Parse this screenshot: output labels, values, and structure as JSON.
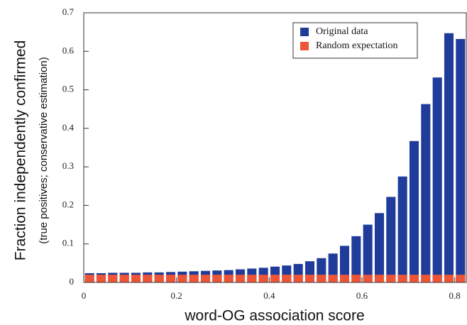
{
  "chart_data": {
    "type": "histogram",
    "xlabel": "word-OG association score",
    "ylabel": "Fraction independently confirmed",
    "ylabel_sub": "(true positives; conservative estimation)",
    "bins": [
      0,
      0.025,
      0.05,
      0.075,
      0.1,
      0.125,
      0.15,
      0.175,
      0.2,
      0.225,
      0.25,
      0.275,
      0.3,
      0.325,
      0.35,
      0.375,
      0.4,
      0.425,
      0.45,
      0.475,
      0.5,
      0.525,
      0.55,
      0.575,
      0.6,
      0.625,
      0.65,
      0.675,
      0.7,
      0.725,
      0.75,
      0.775,
      0.8,
      0.825
    ],
    "series": [
      {
        "name": "Original data",
        "color": "#1f3c9a",
        "values": [
          0.024,
          0.024,
          0.025,
          0.025,
          0.025,
          0.026,
          0.026,
          0.027,
          0.028,
          0.029,
          0.03,
          0.031,
          0.032,
          0.034,
          0.036,
          0.038,
          0.041,
          0.044,
          0.048,
          0.055,
          0.063,
          0.075,
          0.095,
          0.12,
          0.15,
          0.18,
          0.222,
          0.275,
          0.367,
          0.463,
          0.532,
          0.647,
          0.632
        ]
      },
      {
        "name": "Random expectation",
        "color": "#ee5436",
        "values": [
          0.02,
          0.02,
          0.02,
          0.02,
          0.02,
          0.02,
          0.02,
          0.02,
          0.02,
          0.02,
          0.02,
          0.02,
          0.02,
          0.02,
          0.02,
          0.02,
          0.02,
          0.02,
          0.02,
          0.02,
          0.02,
          0.02,
          0.02,
          0.02,
          0.02,
          0.02,
          0.02,
          0.02,
          0.02,
          0.02,
          0.02,
          0.02,
          0.02
        ]
      }
    ],
    "xlim": [
      0,
      0.825
    ],
    "ylim": [
      0,
      0.7
    ],
    "xticks": [
      0,
      0.2,
      0.4,
      0.6,
      0.8
    ],
    "yticks": [
      0,
      0.1,
      0.2,
      0.3,
      0.4,
      0.5,
      0.6,
      0.7
    ],
    "legend": "upper right"
  }
}
